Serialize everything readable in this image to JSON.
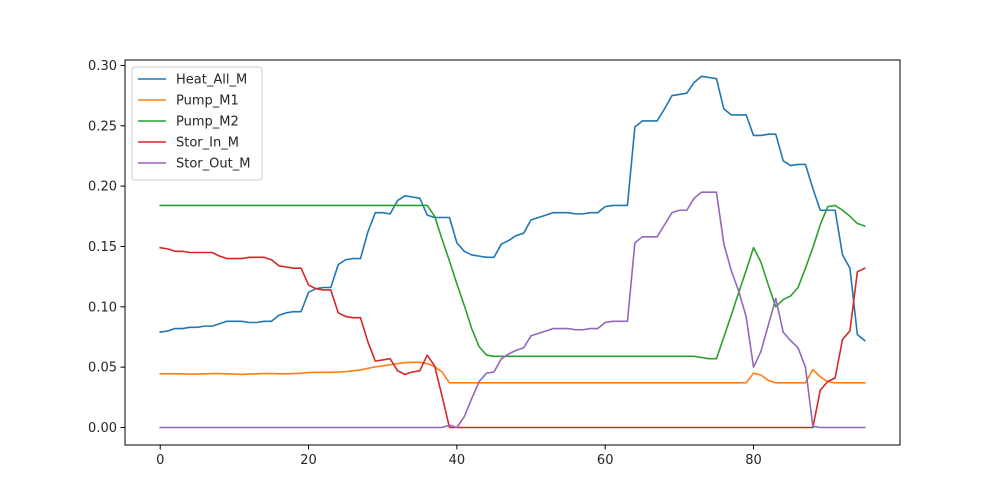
{
  "chart_data": {
    "type": "line",
    "title": "",
    "xlabel": "",
    "ylabel": "",
    "xlim": [
      -4.75,
      99.75
    ],
    "ylim": [
      -0.0145,
      0.3045
    ],
    "xticks": [
      0,
      20,
      40,
      60,
      80
    ],
    "yticks": [
      0.0,
      0.05,
      0.1,
      0.15,
      0.2,
      0.25,
      0.3
    ],
    "xtick_labels": [
      "0",
      "20",
      "40",
      "60",
      "80"
    ],
    "ytick_labels": [
      "0.00",
      "0.05",
      "0.10",
      "0.15",
      "0.20",
      "0.25",
      "0.30"
    ],
    "grid": false,
    "legend_position": "upper-left",
    "x": [
      0,
      1,
      2,
      3,
      4,
      5,
      6,
      7,
      8,
      9,
      10,
      11,
      12,
      13,
      14,
      15,
      16,
      17,
      18,
      19,
      20,
      21,
      22,
      23,
      24,
      25,
      26,
      27,
      28,
      29,
      30,
      31,
      32,
      33,
      34,
      35,
      36,
      37,
      38,
      39,
      40,
      41,
      42,
      43,
      44,
      45,
      46,
      47,
      48,
      49,
      50,
      51,
      52,
      53,
      54,
      55,
      56,
      57,
      58,
      59,
      60,
      61,
      62,
      63,
      64,
      65,
      66,
      67,
      68,
      69,
      70,
      71,
      72,
      73,
      74,
      75,
      76,
      77,
      78,
      79,
      80,
      81,
      82,
      83,
      84,
      85,
      86,
      87,
      88,
      89,
      90,
      91,
      92,
      93,
      94,
      95
    ],
    "series": [
      {
        "name": "Heat_All_M",
        "color": "#1f77b4",
        "values": [
          0.079,
          0.08,
          0.082,
          0.082,
          0.083,
          0.083,
          0.084,
          0.084,
          0.086,
          0.088,
          0.088,
          0.088,
          0.087,
          0.087,
          0.088,
          0.088,
          0.093,
          0.095,
          0.096,
          0.096,
          0.112,
          0.115,
          0.116,
          0.116,
          0.135,
          0.139,
          0.14,
          0.14,
          0.162,
          0.178,
          0.178,
          0.177,
          0.188,
          0.192,
          0.191,
          0.19,
          0.176,
          0.174,
          0.174,
          0.174,
          0.153,
          0.146,
          0.143,
          0.142,
          0.141,
          0.141,
          0.152,
          0.155,
          0.159,
          0.161,
          0.172,
          0.174,
          0.176,
          0.178,
          0.178,
          0.178,
          0.177,
          0.177,
          0.178,
          0.178,
          0.183,
          0.184,
          0.184,
          0.184,
          0.249,
          0.254,
          0.254,
          0.254,
          0.264,
          0.275,
          0.276,
          0.277,
          0.286,
          0.291,
          0.29,
          0.289,
          0.264,
          0.259,
          0.259,
          0.259,
          0.242,
          0.242,
          0.243,
          0.243,
          0.221,
          0.217,
          0.218,
          0.218,
          0.198,
          0.18,
          0.18,
          0.18,
          0.143,
          0.132,
          0.077,
          0.072
        ]
      },
      {
        "name": "Pump_M1",
        "color": "#ff7f0e",
        "values": [
          0.0445,
          0.0445,
          0.0445,
          0.0445,
          0.0443,
          0.0443,
          0.0445,
          0.0447,
          0.0447,
          0.0445,
          0.0443,
          0.044,
          0.0443,
          0.0445,
          0.0447,
          0.0447,
          0.0445,
          0.0445,
          0.0447,
          0.045,
          0.0455,
          0.0457,
          0.0457,
          0.0457,
          0.046,
          0.0463,
          0.047,
          0.0477,
          0.049,
          0.0503,
          0.051,
          0.052,
          0.053,
          0.0537,
          0.054,
          0.054,
          0.053,
          0.0505,
          0.046,
          0.037,
          0.037,
          0.037,
          0.037,
          0.037,
          0.037,
          0.037,
          0.037,
          0.037,
          0.037,
          0.037,
          0.037,
          0.037,
          0.037,
          0.037,
          0.037,
          0.037,
          0.037,
          0.037,
          0.037,
          0.037,
          0.037,
          0.037,
          0.037,
          0.037,
          0.037,
          0.037,
          0.037,
          0.037,
          0.037,
          0.037,
          0.037,
          0.037,
          0.037,
          0.037,
          0.037,
          0.037,
          0.037,
          0.037,
          0.037,
          0.037,
          0.045,
          0.0435,
          0.039,
          0.037,
          0.037,
          0.037,
          0.037,
          0.037,
          0.048,
          0.042,
          0.038,
          0.037,
          0.037,
          0.037,
          0.037,
          0.037
        ]
      },
      {
        "name": "Pump_M2",
        "color": "#2ca02c",
        "values": [
          0.184,
          0.184,
          0.184,
          0.184,
          0.184,
          0.184,
          0.184,
          0.184,
          0.184,
          0.184,
          0.184,
          0.184,
          0.184,
          0.184,
          0.184,
          0.184,
          0.184,
          0.184,
          0.184,
          0.184,
          0.184,
          0.184,
          0.184,
          0.184,
          0.184,
          0.184,
          0.184,
          0.184,
          0.184,
          0.184,
          0.184,
          0.184,
          0.184,
          0.184,
          0.184,
          0.184,
          0.184,
          0.175,
          0.156,
          0.138,
          0.119,
          0.101,
          0.082,
          0.067,
          0.06,
          0.059,
          0.059,
          0.059,
          0.059,
          0.059,
          0.059,
          0.059,
          0.059,
          0.059,
          0.059,
          0.059,
          0.059,
          0.059,
          0.059,
          0.059,
          0.059,
          0.059,
          0.059,
          0.059,
          0.059,
          0.059,
          0.059,
          0.059,
          0.059,
          0.059,
          0.059,
          0.059,
          0.059,
          0.058,
          0.057,
          0.057,
          0.075,
          0.093,
          0.112,
          0.13,
          0.149,
          0.137,
          0.118,
          0.1,
          0.106,
          0.109,
          0.116,
          0.132,
          0.149,
          0.168,
          0.183,
          0.184,
          0.18,
          0.175,
          0.169,
          0.167
        ]
      },
      {
        "name": "Stor_In_M",
        "color": "#d62728",
        "values": [
          0.149,
          0.148,
          0.146,
          0.146,
          0.145,
          0.145,
          0.145,
          0.145,
          0.142,
          0.14,
          0.14,
          0.14,
          0.141,
          0.141,
          0.141,
          0.139,
          0.134,
          0.133,
          0.132,
          0.132,
          0.118,
          0.115,
          0.114,
          0.114,
          0.095,
          0.092,
          0.091,
          0.091,
          0.071,
          0.055,
          0.056,
          0.057,
          0.047,
          0.044,
          0.046,
          0.047,
          0.06,
          0.051,
          0.026,
          0.0,
          0.0,
          0.0,
          0.0,
          0.0,
          0.0,
          0.0,
          0.0,
          0.0,
          0.0,
          0.0,
          0.0,
          0.0,
          0.0,
          0.0,
          0.0,
          0.0,
          0.0,
          0.0,
          0.0,
          0.0,
          0.0,
          0.0,
          0.0,
          0.0,
          0.0,
          0.0,
          0.0,
          0.0,
          0.0,
          0.0,
          0.0,
          0.0,
          0.0,
          0.0,
          0.0,
          0.0,
          0.0,
          0.0,
          0.0,
          0.0,
          0.0,
          0.0,
          0.0,
          0.0,
          0.0,
          0.0,
          0.0,
          0.0,
          0.0,
          0.031,
          0.038,
          0.041,
          0.073,
          0.08,
          0.129,
          0.132
        ]
      },
      {
        "name": "Stor_Out_M",
        "color": "#9467bd",
        "values": [
          0.0,
          0.0,
          0.0,
          0.0,
          0.0,
          0.0,
          0.0,
          0.0,
          0.0,
          0.0,
          0.0,
          0.0,
          0.0,
          0.0,
          0.0,
          0.0,
          0.0,
          0.0,
          0.0,
          0.0,
          0.0,
          0.0,
          0.0,
          0.0,
          0.0,
          0.0,
          0.0,
          0.0,
          0.0,
          0.0,
          0.0,
          0.0,
          0.0,
          0.0,
          0.0,
          0.0,
          0.0,
          0.0,
          0.0,
          0.002,
          0.0,
          0.009,
          0.024,
          0.038,
          0.045,
          0.046,
          0.057,
          0.061,
          0.064,
          0.066,
          0.076,
          0.078,
          0.08,
          0.082,
          0.082,
          0.082,
          0.081,
          0.081,
          0.082,
          0.082,
          0.087,
          0.088,
          0.088,
          0.088,
          0.153,
          0.158,
          0.158,
          0.158,
          0.168,
          0.178,
          0.18,
          0.18,
          0.19,
          0.195,
          0.195,
          0.195,
          0.152,
          0.13,
          0.113,
          0.092,
          0.05,
          0.063,
          0.085,
          0.107,
          0.079,
          0.072,
          0.066,
          0.05,
          0.001,
          0.0,
          0.0,
          0.0,
          0.0,
          0.0,
          0.0,
          0.0
        ]
      }
    ]
  }
}
